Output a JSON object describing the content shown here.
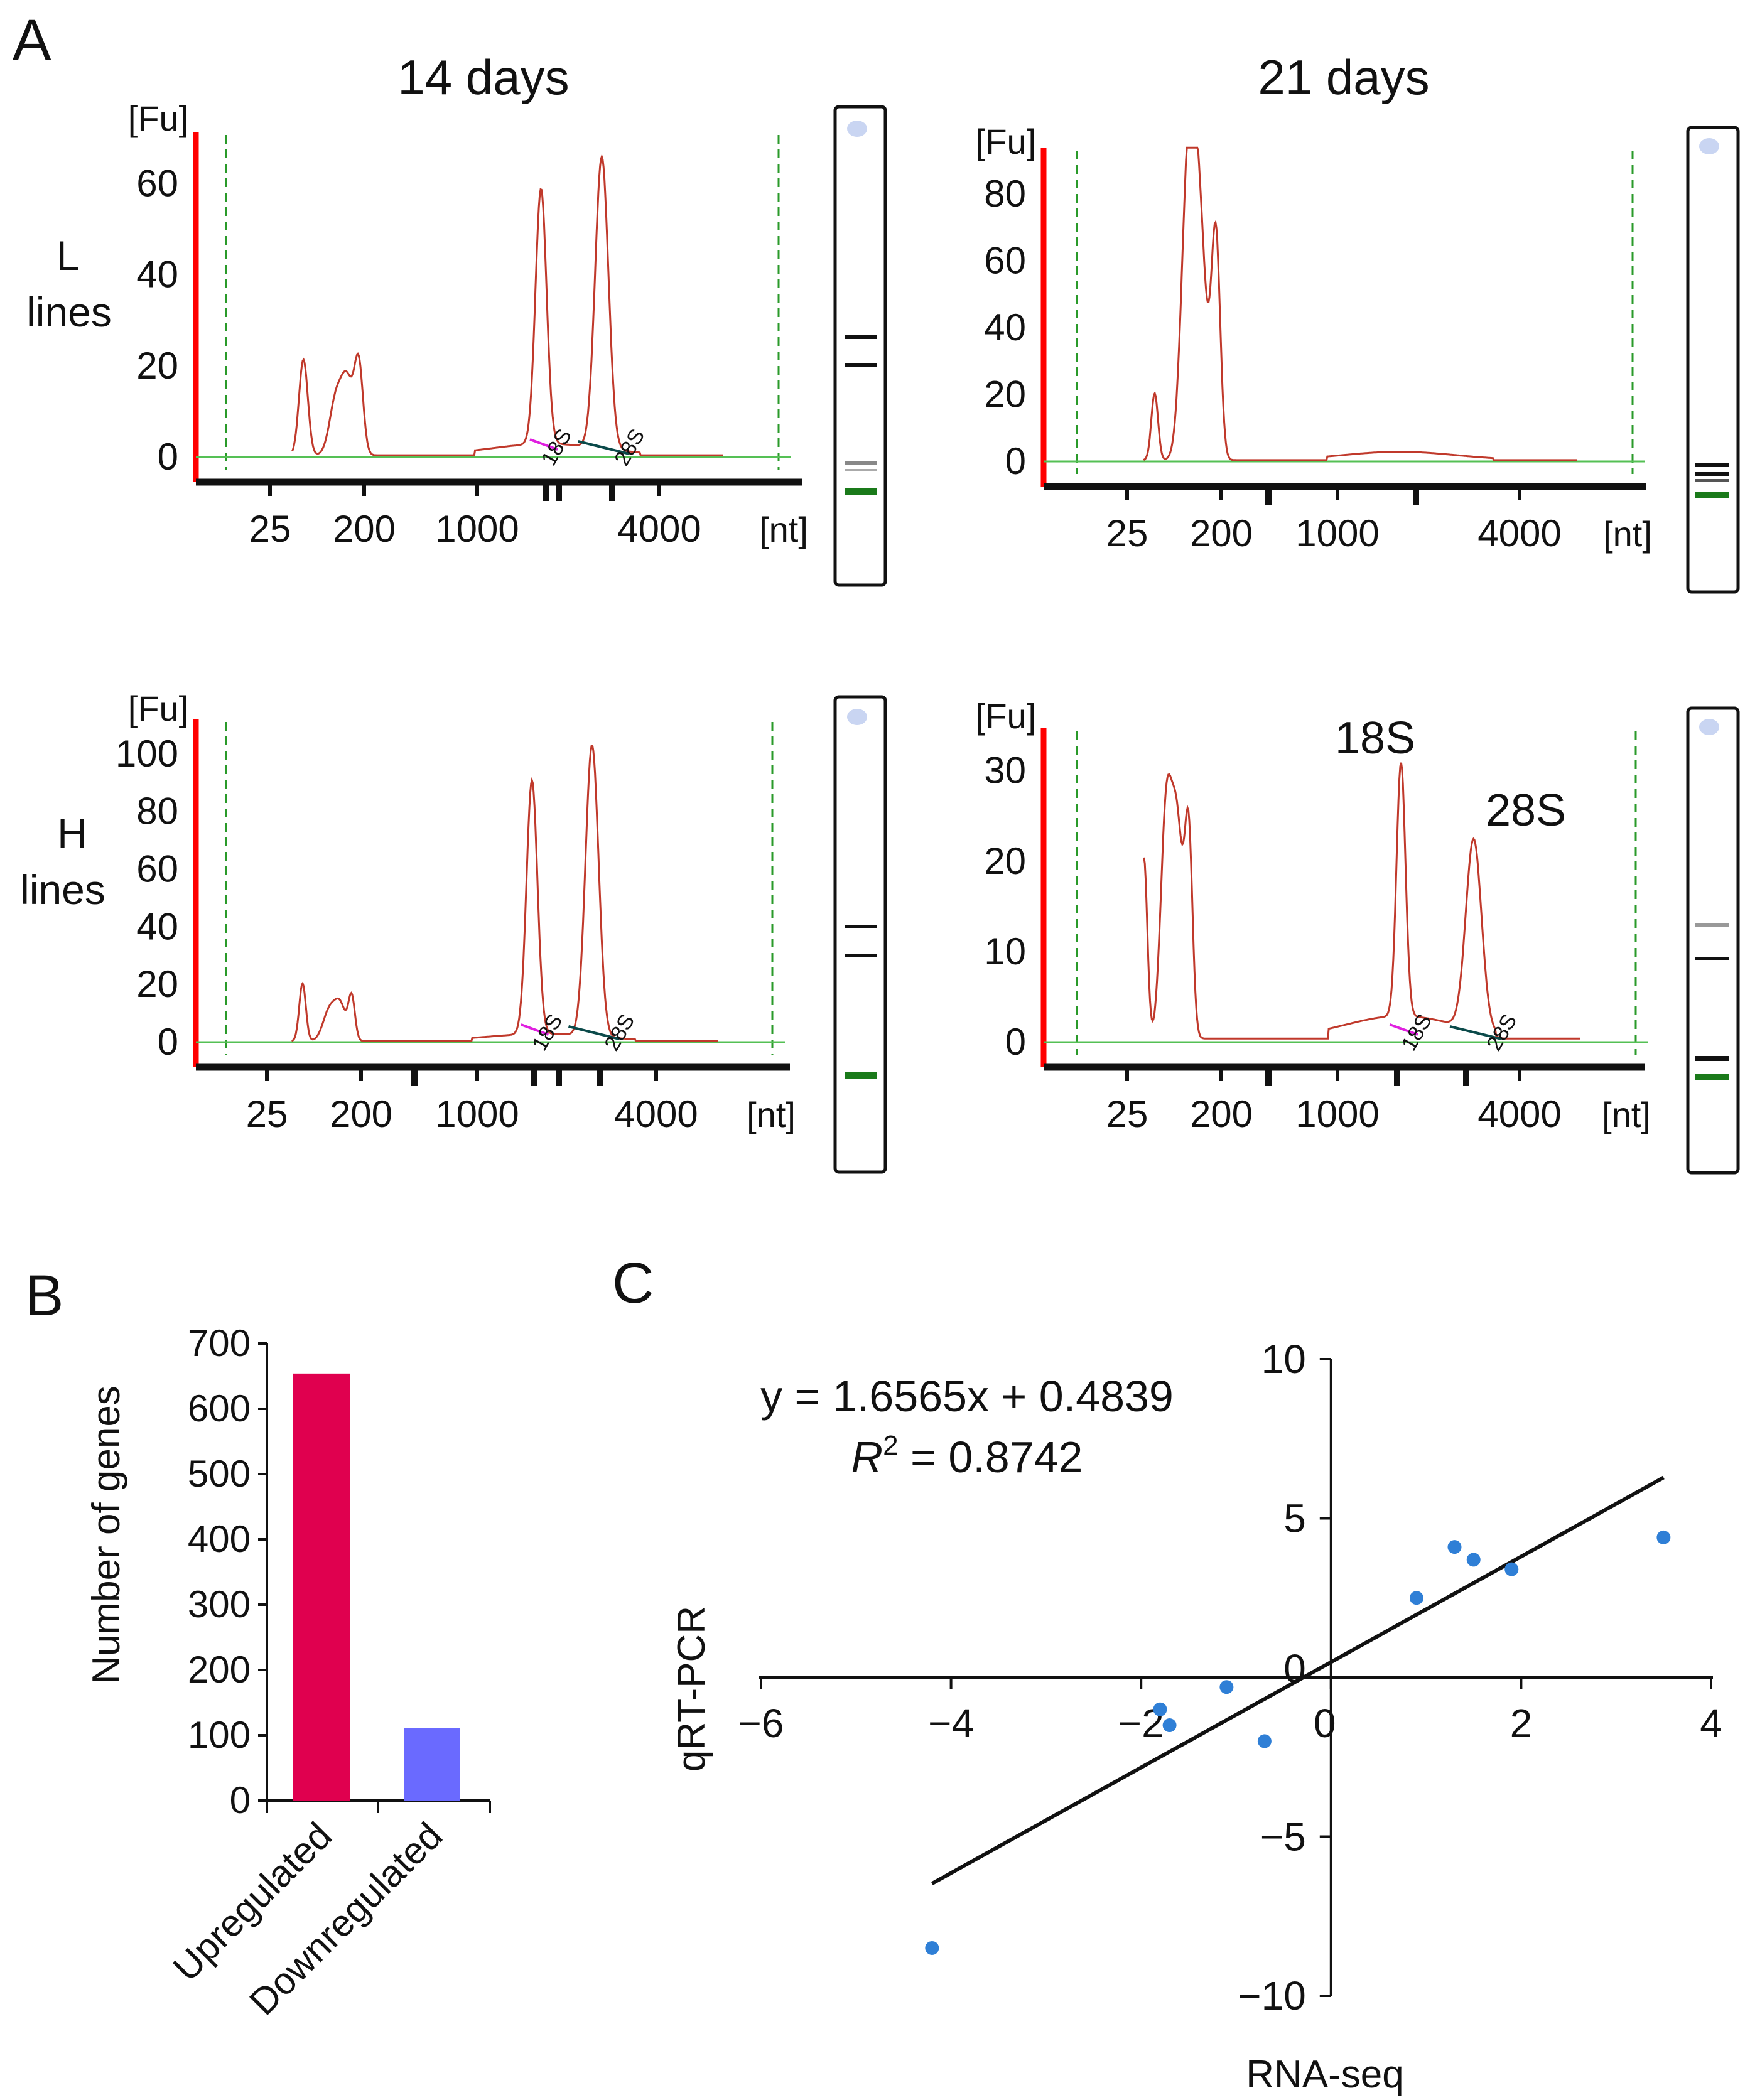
{
  "panels": {
    "A": {
      "label": "A",
      "columns": [
        "14 days",
        "21 days"
      ],
      "rows": [
        {
          "line1": "L",
          "line2": "lines"
        },
        {
          "line1": "H",
          "line2": "lines"
        }
      ],
      "y_unit": "[Fu]",
      "x_unit": "[nt]",
      "x_ticks": [
        "25",
        "200",
        "1000",
        "4000"
      ],
      "peak_labels": {
        "small": "18S",
        "large": "28S"
      },
      "annotations": {
        "s18": "18S",
        "s28": "28S"
      },
      "colors": {
        "trace": "#c0392b",
        "axis": "#ff0000",
        "baseline": "#55c055",
        "marker": "#2a9a2a"
      }
    },
    "B": {
      "label": "B"
    },
    "C": {
      "label": "C"
    }
  },
  "chart_data": [
    {
      "id": "A-L-14",
      "type": "line",
      "title": "14 days",
      "row": "L lines",
      "xlabel": "[nt]",
      "ylabel": "[Fu]",
      "ylim": [
        0,
        70
      ],
      "yticks": [
        0,
        20,
        40,
        60
      ],
      "x_ticklabels": [
        "25",
        "200",
        "1000",
        "4000"
      ],
      "x_domain": [
        0,
        100
      ],
      "peaks": [
        {
          "x": 14,
          "y": 21,
          "w": 0.8
        },
        {
          "x": 20,
          "y": 13,
          "w": 1.2
        },
        {
          "x": 22,
          "y": 14,
          "w": 1.0
        },
        {
          "x": 24,
          "y": 20,
          "w": 0.8
        },
        {
          "x": 57,
          "y": 56,
          "w": 1.0
        },
        {
          "x": 68,
          "y": 64,
          "w": 1.2
        }
      ]
    },
    {
      "id": "A-L-21",
      "type": "line",
      "title": "21 days",
      "row": "L lines",
      "xlabel": "[nt]",
      "ylabel": "[Fu]",
      "ylim": [
        0,
        92
      ],
      "yticks": [
        0,
        20,
        40,
        60,
        80
      ],
      "x_ticklabels": [
        "25",
        "200",
        "1000",
        "4000"
      ],
      "x_domain": [
        0,
        100
      ],
      "peaks": [
        {
          "x": 14,
          "y": 20,
          "w": 0.6
        },
        {
          "x": 20,
          "y": 80,
          "w": 1.2
        },
        {
          "x": 22,
          "y": 68,
          "w": 1.3
        },
        {
          "x": 25,
          "y": 66,
          "w": 0.8
        }
      ]
    },
    {
      "id": "A-H-14",
      "type": "line",
      "title": "14 days",
      "row": "H lines",
      "xlabel": "[nt]",
      "ylabel": "[Fu]",
      "ylim": [
        0,
        110
      ],
      "yticks": [
        0,
        20,
        40,
        60,
        80,
        100
      ],
      "x_ticklabels": [
        "25",
        "200",
        "1000",
        "4000"
      ],
      "x_domain": [
        0,
        100
      ],
      "peaks": [
        {
          "x": 14,
          "y": 20,
          "w": 0.6
        },
        {
          "x": 19,
          "y": 11,
          "w": 1.2
        },
        {
          "x": 21,
          "y": 11,
          "w": 1.0
        },
        {
          "x": 23,
          "y": 15,
          "w": 0.6
        },
        {
          "x": 56,
          "y": 88,
          "w": 1.0
        },
        {
          "x": 67,
          "y": 101,
          "w": 1.2
        }
      ]
    },
    {
      "id": "A-H-21",
      "type": "line",
      "title": "21 days",
      "row": "H lines",
      "xlabel": "[nt]",
      "ylabel": "[Fu]",
      "ylim": [
        0,
        34
      ],
      "yticks": [
        0,
        10,
        20,
        30
      ],
      "x_ticklabels": [
        "25",
        "200",
        "1000",
        "4000"
      ],
      "x_domain": [
        0,
        100
      ],
      "peaks": [
        {
          "x": 12,
          "y": 20,
          "w": 0.6
        },
        {
          "x": 16,
          "y": 25,
          "w": 1.0
        },
        {
          "x": 18,
          "y": 22,
          "w": 1.0
        },
        {
          "x": 20,
          "y": 22,
          "w": 0.7
        },
        {
          "x": 58,
          "y": 28,
          "w": 0.8
        },
        {
          "x": 71,
          "y": 21,
          "w": 1.4
        }
      ]
    },
    {
      "id": "B",
      "type": "bar",
      "categories": [
        "Upregulated",
        "Downregulated"
      ],
      "values": [
        654,
        111
      ],
      "colors": [
        "#e0004f",
        "#6a6aff"
      ],
      "title": "",
      "xlabel": "",
      "ylabel": "Number of genes",
      "ylim": [
        0,
        700
      ],
      "yticks": [
        0,
        100,
        200,
        300,
        400,
        500,
        600,
        700
      ]
    },
    {
      "id": "C",
      "type": "scatter",
      "title": "",
      "xlabel": "RNA-seq",
      "ylabel": "qRT-PCR",
      "xlim": [
        -6,
        4
      ],
      "ylim": [
        -10,
        10
      ],
      "xticks": [
        "−6",
        "−4",
        "−2",
        "0",
        "2",
        "4"
      ],
      "yticks": [
        "−10",
        "−5",
        "0",
        "5",
        "10"
      ],
      "points": [
        [
          -4.2,
          -8.5
        ],
        [
          -1.8,
          -1.0
        ],
        [
          -1.7,
          -1.5
        ],
        [
          -1.1,
          -0.3
        ],
        [
          -0.7,
          -2.0
        ],
        [
          0.9,
          2.5
        ],
        [
          1.3,
          4.1
        ],
        [
          1.5,
          3.7
        ],
        [
          1.9,
          3.4
        ],
        [
          3.5,
          4.4
        ]
      ],
      "point_color": "#2f7fd6",
      "fit": {
        "slope": 1.6565,
        "intercept": 0.4839,
        "x_range": [
          -4.2,
          3.5
        ]
      },
      "equation": "y = 1.6565x + 0.4839",
      "r2_label": "R",
      "r2_sup": "2",
      "r2_value": " = 0.8742"
    }
  ]
}
